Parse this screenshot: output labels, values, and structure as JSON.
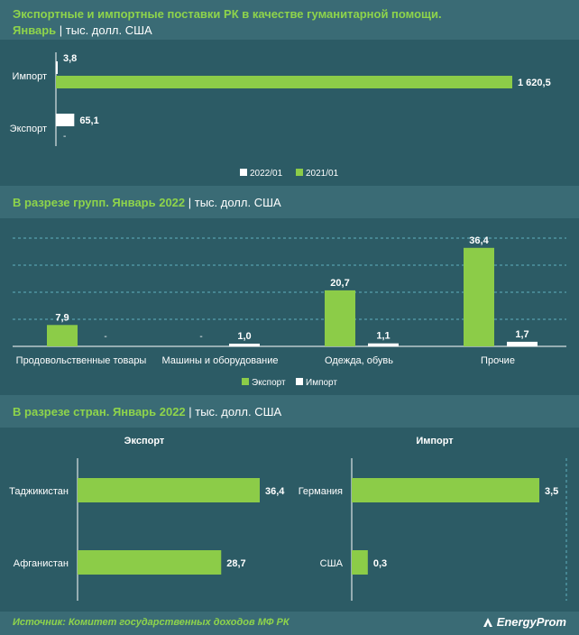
{
  "header1": {
    "title": "Экспортные и импортные поставки РК в качестве гуманитарной помощи.",
    "line2_bold": "Январь",
    "line2_rest": " | тыс. долл. США"
  },
  "header2": {
    "bold": "В разрезе групп. Январь 2022",
    "rest": " | тыс. долл. США"
  },
  "header3": {
    "bold": "В разрезе стран. Январь 2022",
    "rest": " | тыс. долл. США"
  },
  "footer": {
    "source": "Источник: Комитет государственных доходов МФ РК",
    "brand": "EnergyProm"
  },
  "colors": {
    "green": "#8ccc48",
    "white": "#ffffff",
    "bg": "#2c5b65",
    "header_bg": "#3a6b75",
    "accent": "#8ed44b"
  },
  "chart_data": [
    {
      "type": "bar",
      "orientation": "horizontal",
      "categories": [
        "Импорт",
        "Экспорт"
      ],
      "series": [
        {
          "name": "2022/01",
          "values": [
            3.8,
            65.1
          ],
          "labels": [
            "3,8",
            "65,1"
          ],
          "color": "#ffffff"
        },
        {
          "name": "2021/01",
          "values": [
            1620.5,
            null
          ],
          "labels": [
            "1 620,5",
            "-"
          ],
          "color": "#8ccc48"
        }
      ],
      "legend": "bottom-center"
    },
    {
      "type": "bar",
      "categories": [
        "Продовольственные товары",
        "Машины и оборудование",
        "Одежда, обувь",
        "Прочие"
      ],
      "series": [
        {
          "name": "Экспорт",
          "values": [
            7.9,
            null,
            20.7,
            36.4
          ],
          "labels": [
            "7,9",
            "-",
            "20,7",
            "36,4"
          ],
          "color": "#8ccc48"
        },
        {
          "name": "Импорт",
          "values": [
            null,
            1.0,
            1.1,
            1.7
          ],
          "labels": [
            "-",
            "1,0",
            "1,1",
            "1,7"
          ],
          "color": "#ffffff"
        }
      ],
      "grid": true,
      "legend": "bottom-center"
    },
    {
      "type": "bar",
      "orientation": "horizontal",
      "title": "Экспорт",
      "categories": [
        "Таджикистан",
        "Афганистан"
      ],
      "values": [
        36.4,
        28.7
      ],
      "labels": [
        "36,4",
        "28,7"
      ]
    },
    {
      "type": "bar",
      "orientation": "horizontal",
      "title": "Импорт",
      "categories": [
        "Германия",
        "США"
      ],
      "values": [
        3.5,
        0.3
      ],
      "labels": [
        "3,5",
        "0,3"
      ]
    }
  ]
}
